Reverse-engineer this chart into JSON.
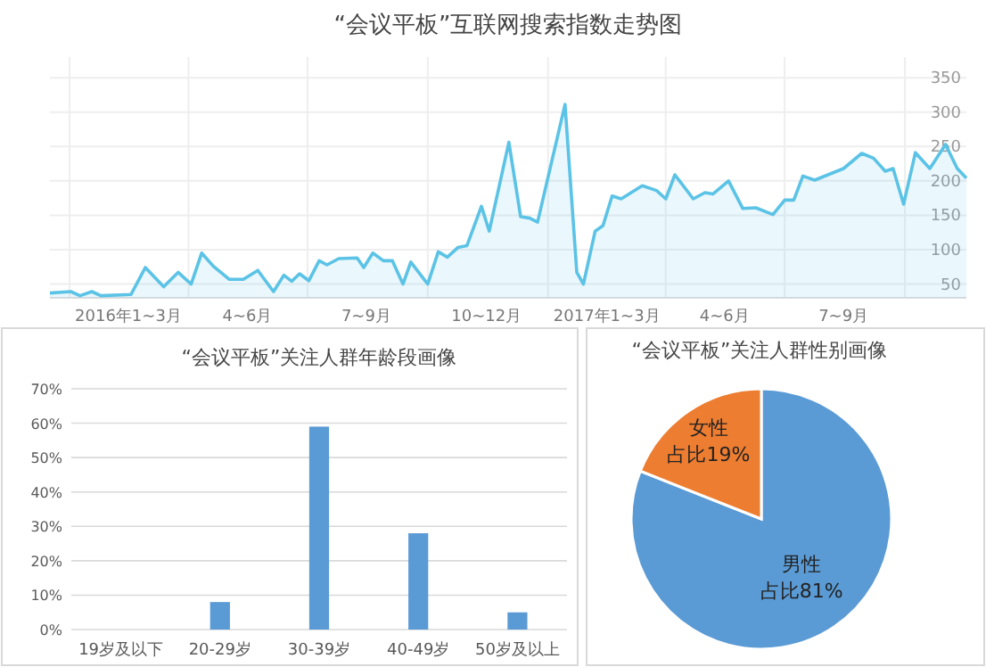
{
  "chart_data": [
    {
      "type": "area",
      "title": "“会议平板”互联网搜索指数走势图",
      "xlim": [
        "2015-12-17",
        "2017-11-17"
      ],
      "ylim": [
        30,
        380
      ],
      "yticks": [
        50,
        100,
        150,
        200,
        250,
        300,
        350
      ],
      "xticks": [
        {
          "value": "2016-01-01",
          "label": null
        },
        {
          "value": "2016-02-15",
          "label": "2016年1~3月"
        },
        {
          "value": "2016-04-01",
          "label": null
        },
        {
          "value": "2016-05-16",
          "label": "4~6月"
        },
        {
          "value": "2016-07-01",
          "label": null
        },
        {
          "value": "2016-08-15",
          "label": "7~9月"
        },
        {
          "value": "2016-10-01",
          "label": null
        },
        {
          "value": "2016-11-15",
          "label": "10~12月"
        },
        {
          "value": "2017-01-01",
          "label": null
        },
        {
          "value": "2017-02-15",
          "label": "2017年1~3月"
        },
        {
          "value": "2017-04-01",
          "label": null
        },
        {
          "value": "2017-05-16",
          "label": "4~6月"
        },
        {
          "value": "2017-07-01",
          "label": null
        },
        {
          "value": "2017-08-15",
          "label": "7~9月"
        },
        {
          "value": "2017-10-01",
          "label": null
        }
      ],
      "grid": true,
      "x": [
        "2015-12-17",
        "2016-01-02",
        "2016-01-09",
        "2016-01-18",
        "2016-01-25",
        "2016-02-17",
        "2016-02-28",
        "2016-03-13",
        "2016-03-24",
        "2016-04-03",
        "2016-04-11",
        "2016-04-20",
        "2016-05-02",
        "2016-05-13",
        "2016-05-24",
        "2016-06-05",
        "2016-06-13",
        "2016-06-19",
        "2016-06-25",
        "2016-07-02",
        "2016-07-10",
        "2016-07-16",
        "2016-07-25",
        "2016-08-08",
        "2016-08-13",
        "2016-08-20",
        "2016-08-28",
        "2016-09-04",
        "2016-09-12",
        "2016-09-18",
        "2016-10-01",
        "2016-10-09",
        "2016-10-16",
        "2016-10-24",
        "2016-10-31",
        "2016-11-11",
        "2016-11-17",
        "2016-12-02",
        "2016-12-11",
        "2016-12-18",
        "2016-12-24",
        "2017-01-14",
        "2017-01-23",
        "2017-01-28",
        "2017-02-06",
        "2017-02-12",
        "2017-02-19",
        "2017-02-26",
        "2017-03-14",
        "2017-03-25",
        "2017-04-01",
        "2017-04-08",
        "2017-04-22",
        "2017-05-01",
        "2017-05-07",
        "2017-05-19",
        "2017-05-30",
        "2017-06-09",
        "2017-06-22",
        "2017-07-01",
        "2017-07-08",
        "2017-07-15",
        "2017-07-24",
        "2017-08-15",
        "2017-08-29",
        "2017-09-07",
        "2017-09-16",
        "2017-09-22",
        "2017-09-30",
        "2017-10-09",
        "2017-10-20",
        "2017-11-01",
        "2017-11-10",
        "2017-11-17"
      ],
      "series": [
        {
          "color": "#5bc3e6",
          "values": [
            37,
            39,
            33,
            39,
            33,
            35,
            74,
            46,
            67,
            50,
            95,
            76,
            57,
            57,
            70,
            39,
            63,
            54,
            65,
            55,
            84,
            78,
            87,
            88,
            74,
            95,
            84,
            84,
            50,
            82,
            50,
            97,
            89,
            103,
            106,
            163,
            127,
            256,
            148,
            146,
            140,
            311,
            67,
            50,
            127,
            135,
            178,
            174,
            193,
            186,
            174,
            209,
            174,
            183,
            181,
            200,
            160,
            161,
            151,
            172,
            172,
            207,
            201,
            218,
            240,
            233,
            214,
            218,
            166,
            241,
            218,
            253,
            218,
            204
          ]
        }
      ]
    },
    {
      "type": "bar",
      "title": "“会议平板”关注人群年龄段画像",
      "categories": [
        "19岁及以下",
        "20-29岁",
        "30-39岁",
        "40-49岁",
        "50岁及以上"
      ],
      "values": [
        0,
        8,
        59,
        28,
        5
      ],
      "color": "#5b9bd5",
      "ylim": [
        0,
        70
      ],
      "yticks": [
        {
          "value": 0,
          "label": "0%"
        },
        {
          "value": 10,
          "label": "10%"
        },
        {
          "value": 20,
          "label": "20%"
        },
        {
          "value": 30,
          "label": "30%"
        },
        {
          "value": 40,
          "label": "40%"
        },
        {
          "value": 50,
          "label": "50%"
        },
        {
          "value": 60,
          "label": "60%"
        },
        {
          "value": 70,
          "label": "70%"
        }
      ],
      "grid": "y"
    },
    {
      "type": "pie",
      "title": "“会议平板”关注人群性别画像",
      "categories": [
        "男性",
        "女性"
      ],
      "values": [
        81,
        19
      ],
      "colors": [
        "#5b9bd5",
        "#ed7d31"
      ],
      "value_labels": [
        "占比81%",
        "占比19%"
      ]
    }
  ]
}
